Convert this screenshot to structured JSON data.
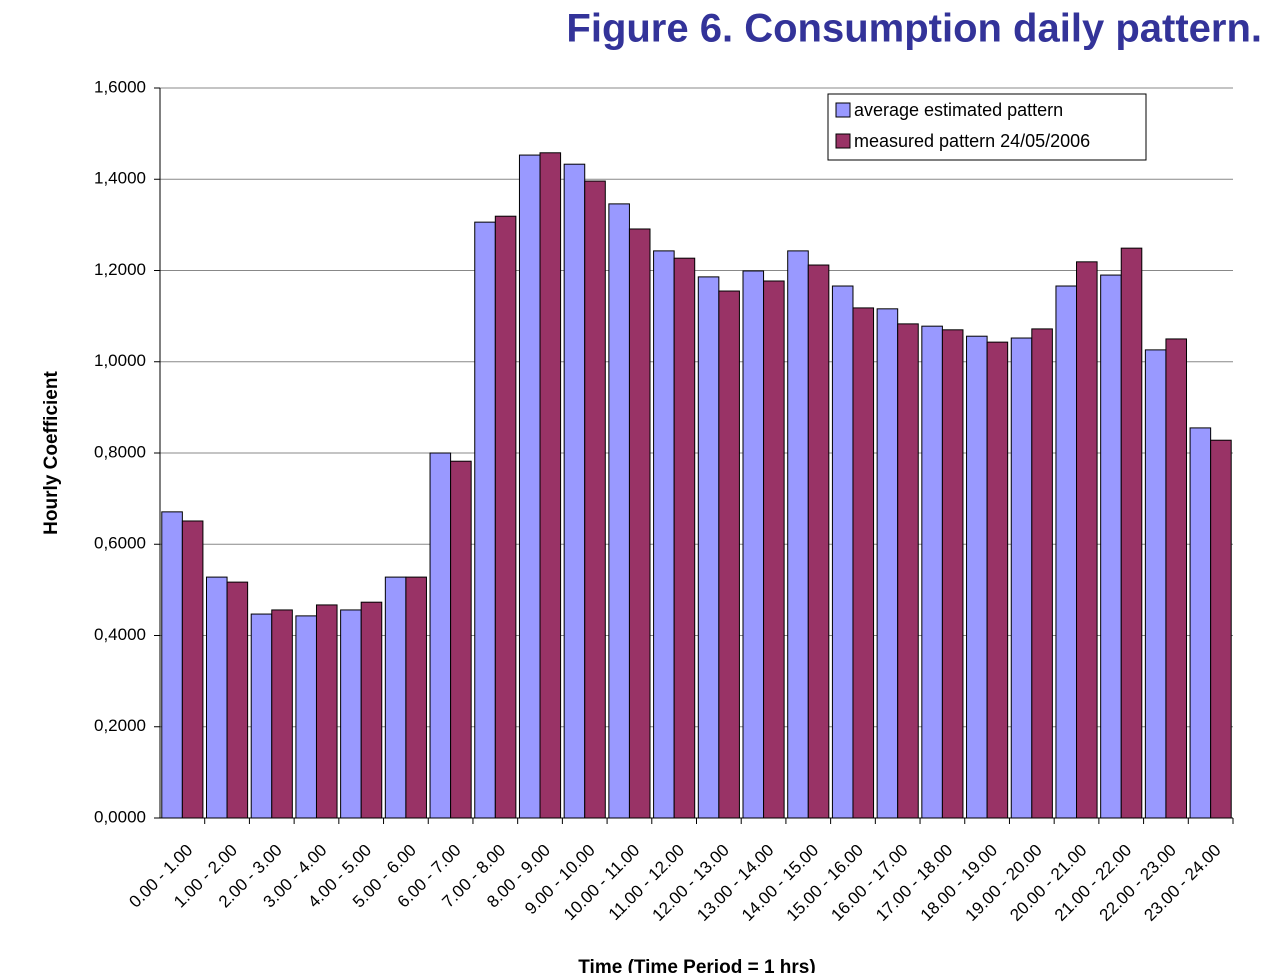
{
  "chart_data": {
    "type": "bar",
    "title": "Figure 6. Consumption daily pattern.",
    "x_label": "Time (Time Period = 1 hrs)",
    "y_label": "Hourly Coefficient",
    "categories": [
      "0.00 - 1.00",
      "1.00 - 2.00",
      "2.00 - 3.00",
      "3.00 - 4.00",
      "4.00 - 5.00",
      "5.00 - 6.00",
      "6.00 - 7.00",
      "7.00 - 8.00",
      "8.00 - 9.00",
      "9.00 - 10.00",
      "10.00 - 11.00",
      "11.00 - 12.00",
      "12.00 - 13.00",
      "13.00 - 14.00",
      "14.00 - 15.00",
      "15.00 - 16.00",
      "16.00 - 17.00",
      "17.00 - 18.00",
      "18.00 - 19.00",
      "19.00 - 20.00",
      "20.00 - 21.00",
      "21.00 - 22.00",
      "22.00 - 23.00",
      "23.00 - 24.00"
    ],
    "series": [
      {
        "name": "average estimated pattern",
        "color": "#9999ff",
        "values": [
          0.671,
          0.528,
          0.447,
          0.443,
          0.456,
          0.528,
          0.8,
          1.306,
          1.453,
          1.433,
          1.346,
          1.243,
          1.186,
          1.199,
          1.243,
          1.166,
          1.116,
          1.078,
          1.056,
          1.052,
          1.166,
          1.19,
          1.026,
          0.855
        ]
      },
      {
        "name": "measured pattern 24/05/2006",
        "color": "#993366",
        "values": [
          0.651,
          0.517,
          0.456,
          0.467,
          0.473,
          0.528,
          0.782,
          1.319,
          1.458,
          1.396,
          1.291,
          1.227,
          1.155,
          1.177,
          1.212,
          1.118,
          1.083,
          1.07,
          1.043,
          1.072,
          1.219,
          1.249,
          1.05,
          0.828
        ]
      }
    ],
    "ylim": [
      0,
      1.6
    ],
    "yticks": [
      {
        "value": 0,
        "label": "0,0000"
      },
      {
        "value": 0.2,
        "label": "0,2000"
      },
      {
        "value": 0.4,
        "label": "0,4000"
      },
      {
        "value": 0.6,
        "label": "0,6000"
      },
      {
        "value": 0.8,
        "label": "0,8000"
      },
      {
        "value": 1.0,
        "label": "1,0000"
      },
      {
        "value": 1.2,
        "label": "1,2000"
      },
      {
        "value": 1.4,
        "label": "1,4000"
      },
      {
        "value": 1.6,
        "label": "1,6000"
      }
    ],
    "grid": true,
    "legend": "top-right"
  }
}
